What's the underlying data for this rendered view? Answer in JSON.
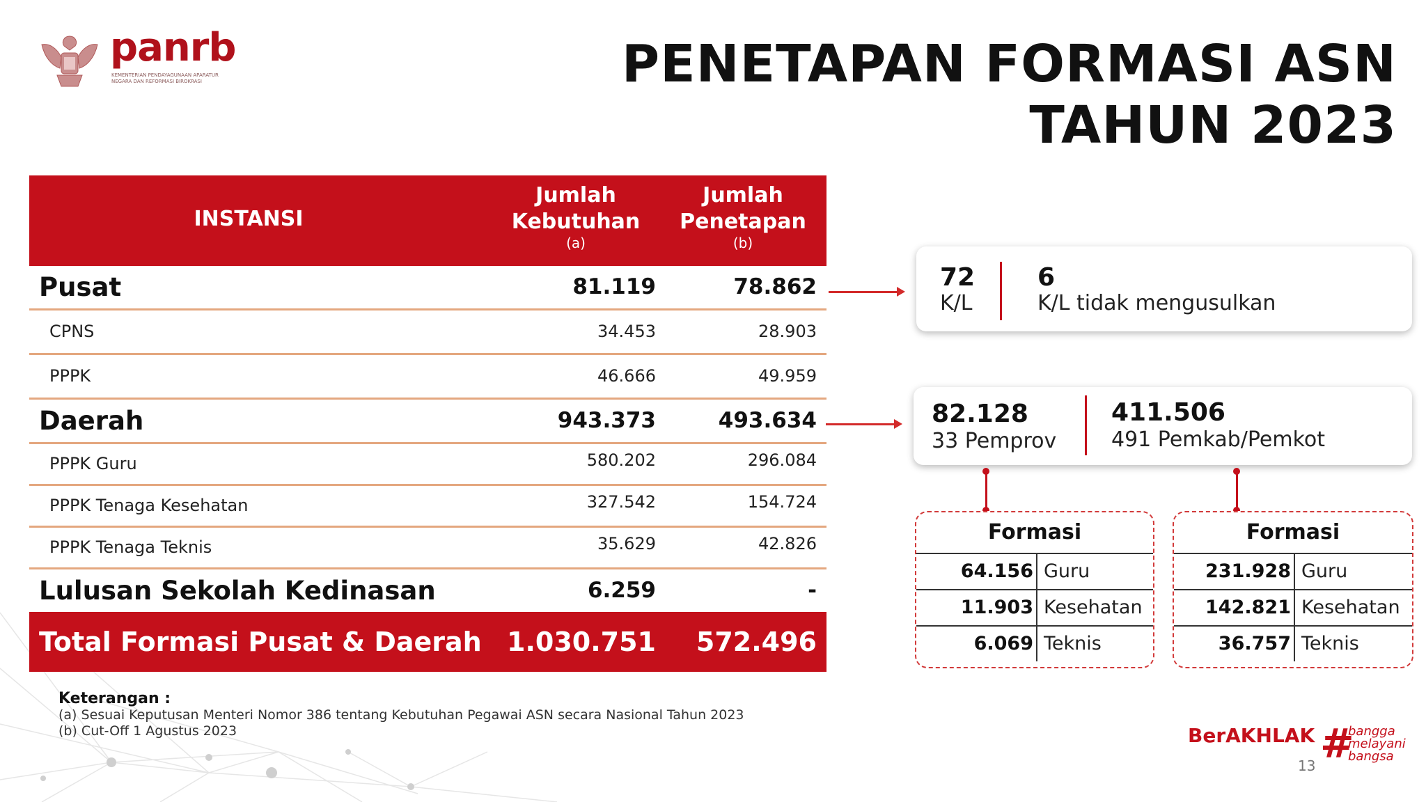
{
  "logo": {
    "name": "panrb",
    "subtitle": "KEMENTERIAN PENDAYAGUNAAN APARATUR NEGARA DAN REFORMASI BIROKRASI"
  },
  "title": {
    "line1": "PENETAPAN FORMASI ASN",
    "line2": "TAHUN 2023"
  },
  "table": {
    "headers": {
      "instansi": "INSTANSI",
      "kebutuhan": "Jumlah Kebutuhan",
      "kebutuhan_note": "(a)",
      "penetapan": "Jumlah Penetapan",
      "penetapan_note": "(b)"
    },
    "rows": [
      {
        "label": "Pusat",
        "kebutuhan": "81.119",
        "penetapan": "78.862"
      },
      {
        "label": "CPNS",
        "kebutuhan": "34.453",
        "penetapan": "28.903"
      },
      {
        "label": "PPPK",
        "kebutuhan": "46.666",
        "penetapan": "49.959"
      },
      {
        "label": "Daerah",
        "kebutuhan": "943.373",
        "penetapan": "493.634"
      },
      {
        "label": "PPPK Guru",
        "kebutuhan": "580.202",
        "penetapan": "296.084"
      },
      {
        "label": "PPPK Tenaga Kesehatan",
        "kebutuhan": "327.542",
        "penetapan": "154.724"
      },
      {
        "label": "PPPK Tenaga Teknis",
        "kebutuhan": "35.629",
        "penetapan": "42.826"
      },
      {
        "label": "Lulusan Sekolah Kedinasan",
        "kebutuhan": "6.259",
        "penetapan": "-"
      }
    ],
    "total": {
      "label": "Total Formasi Pusat & Daerah",
      "kebutuhan": "1.030.751",
      "penetapan": "572.496"
    }
  },
  "pusat_card": {
    "left_num": "72",
    "left_label": "K/L",
    "right_num": "6",
    "right_label": "K/L tidak mengusulkan"
  },
  "daerah_card": {
    "left_num": "82.128",
    "left_label": "33 Pemprov",
    "right_num": "411.506",
    "right_label": "491 Pemkab/Pemkot"
  },
  "formasi_pemprov": {
    "title": "Formasi",
    "rows": [
      {
        "value": "64.156",
        "label": "Guru"
      },
      {
        "value": "11.903",
        "label": "Kesehatan"
      },
      {
        "value": "6.069",
        "label": "Teknis"
      }
    ]
  },
  "formasi_pemkab": {
    "title": "Formasi",
    "rows": [
      {
        "value": "231.928",
        "label": "Guru"
      },
      {
        "value": "142.821",
        "label": "Kesehatan"
      },
      {
        "value": "36.757",
        "label": "Teknis"
      }
    ]
  },
  "notes": {
    "heading": "Keterangan :",
    "a": "(a) Sesuai Keputusan Menteri Nomor 386 tentang Kebutuhan Pegawai ASN secara Nasional Tahun 2023",
    "b": "(b) Cut-Off 1 Agustus 2023"
  },
  "footer": {
    "berakhlak": "BerAKHLAK",
    "bangga_line1": "bangga",
    "bangga_line2": "melayani",
    "bangga_line3": "bangsa",
    "hash": "#",
    "page": "13"
  },
  "colors": {
    "accent_red": "#c4101b",
    "divider": "#e4a77f"
  },
  "icons": {
    "emblem": "garuda-emblem-icon"
  }
}
